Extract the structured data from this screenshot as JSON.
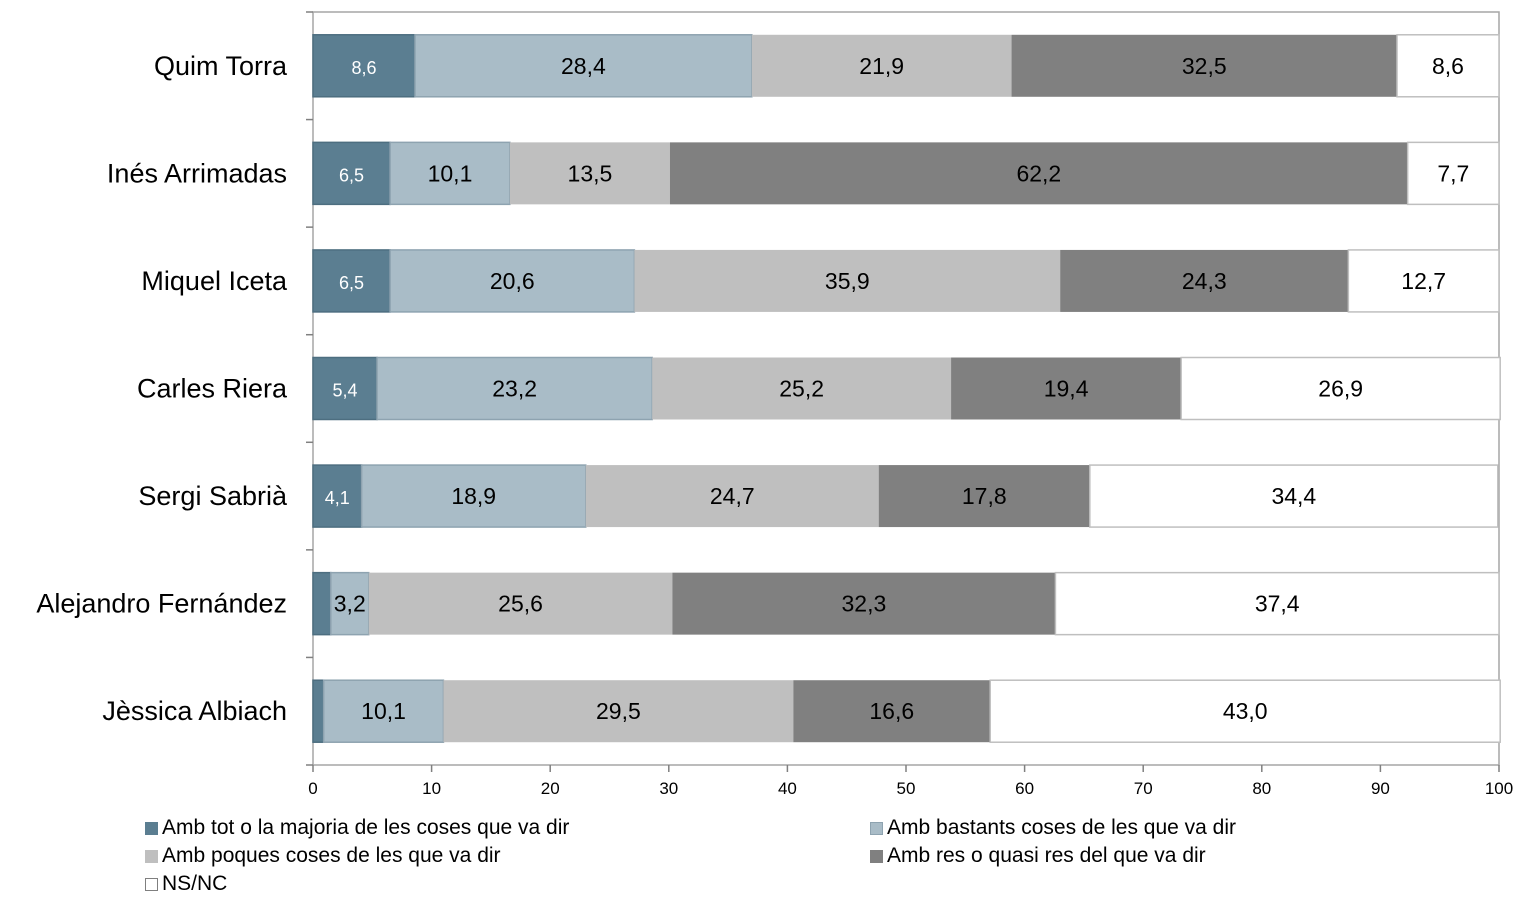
{
  "chart_data": {
    "type": "bar",
    "orientation": "horizontal",
    "stacked": true,
    "categories": [
      "Quim Torra",
      "Inés Arrimadas",
      "Miquel Iceta",
      "Carles Riera",
      "Sergi Sabrià",
      "Alejandro Fernández",
      "Jèssica Albiach"
    ],
    "series": [
      {
        "name": "Amb tot o la majoria de les coses que va dir",
        "color": "#5b7e91",
        "values": [
          8.6,
          6.5,
          6.5,
          5.4,
          4.1,
          1.5,
          0.9
        ],
        "labels": [
          "8,6",
          "6,5",
          "6,5",
          "5,4",
          "4,1",
          "",
          ""
        ]
      },
      {
        "name": "Amb bastants coses de les que va dir",
        "color": "#a9bcc7",
        "values": [
          28.4,
          10.1,
          20.6,
          23.2,
          18.9,
          3.2,
          10.1
        ],
        "labels": [
          "28,4",
          "10,1",
          "20,6",
          "23,2",
          "18,9",
          "3,2",
          "10,1"
        ]
      },
      {
        "name": "Amb poques coses de les que va dir",
        "color": "#bfbfbf",
        "values": [
          21.9,
          13.5,
          35.9,
          25.2,
          24.7,
          25.6,
          29.5
        ],
        "labels": [
          "21,9",
          "13,5",
          "35,9",
          "25,2",
          "24,7",
          "25,6",
          "29,5"
        ]
      },
      {
        "name": "Amb res o quasi res del que va dir",
        "color": "#808080",
        "values": [
          32.5,
          62.2,
          24.3,
          19.4,
          17.8,
          32.3,
          16.6
        ],
        "labels": [
          "32,5",
          "62,2",
          "24,3",
          "19,4",
          "17,8",
          "32,3",
          "16,6"
        ]
      },
      {
        "name": "NS/NC",
        "color": "#ffffff",
        "values": [
          8.6,
          7.7,
          12.7,
          26.9,
          34.4,
          37.4,
          43.0
        ],
        "labels": [
          "8,6",
          "7,7",
          "12,7",
          "26,9",
          "34,4",
          "37,4",
          "43,0"
        ]
      }
    ],
    "xlim": [
      0,
      100
    ],
    "xticks": [
      "0",
      "10",
      "20",
      "30",
      "40",
      "50",
      "60",
      "70",
      "80",
      "90",
      "100"
    ],
    "xlabel": "",
    "ylabel": "",
    "title": "",
    "grid": false,
    "legend_position": "bottom"
  }
}
